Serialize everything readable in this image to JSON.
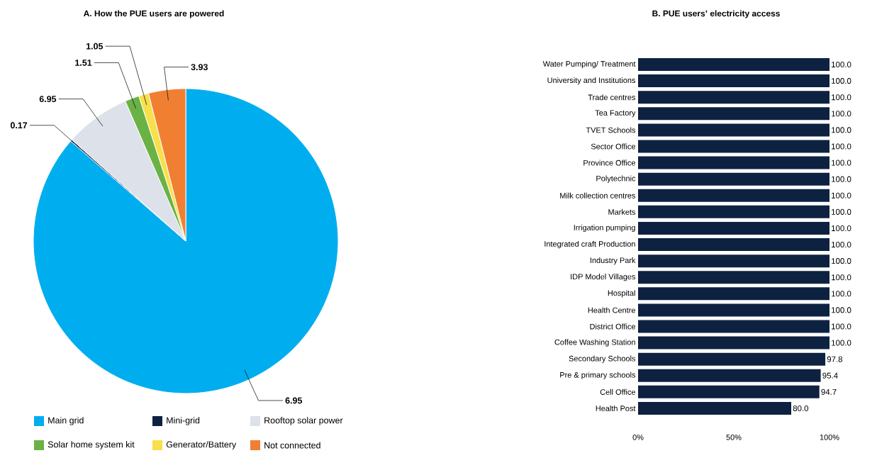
{
  "chart_data": [
    {
      "type": "pie",
      "title": "A. How the PUE users are powered",
      "legend": "bottom",
      "categories": [
        "Main grid",
        "Mini-grid",
        "Rooftop solar power",
        "Solar home system kit",
        "Generator/Battery",
        "Not connected"
      ],
      "values": [
        86.39,
        0.17,
        6.95,
        1.51,
        1.05,
        3.93
      ],
      "annotations": [
        "6.95"
      ],
      "value_labels": [
        null,
        "0.17",
        "6.95",
        "1.51",
        "1.05",
        "3.93"
      ],
      "colors": [
        "#00aeef",
        "#0d2240",
        "#dde1ea",
        "#6ab245",
        "#f7e04b",
        "#f07f32"
      ]
    },
    {
      "type": "bar",
      "orientation": "horizontal",
      "title": "B. PUE users’ electricity access",
      "categories": [
        "Water Pumping/ Treatment",
        "University and Institutions",
        "Trade centres",
        "Tea Factory",
        "TVET Schools",
        "Sector Office",
        "Province Office",
        "Polytechnic",
        "Milk collection centres",
        "Markets",
        "Irrigation pumping",
        "Integrated craft Production",
        "Industry Park",
        "IDP Model Villages",
        "Hospital",
        "Health Centre",
        "District Office",
        "Coffee Washing Station",
        "Secondary Schools",
        "Pre & primary schools",
        "Cell Office",
        "Health Post"
      ],
      "values": [
        100,
        100,
        100,
        100,
        100,
        100,
        100,
        100,
        100,
        100,
        100,
        100,
        100,
        100,
        100,
        100,
        100,
        100,
        97.8,
        95.4,
        94.7,
        80.0
      ],
      "value_labels": [
        "100.0",
        "100.0",
        "100.0",
        "100.0",
        "100.0",
        "100.0",
        "100.0",
        "100.0",
        "100.0",
        "100.0",
        "100.0",
        "100.0",
        "100.0",
        "100.0",
        "100.0",
        "100.0",
        "100.0",
        "100.0",
        "97.8",
        "95.4",
        "94.7",
        "80.0"
      ],
      "color": "#0d2240",
      "xlim": [
        0,
        100
      ],
      "xticks": [
        {
          "value": 0,
          "label": "0%"
        },
        {
          "value": 50,
          "label": "50%"
        },
        {
          "value": 100,
          "label": "100%"
        }
      ]
    }
  ]
}
